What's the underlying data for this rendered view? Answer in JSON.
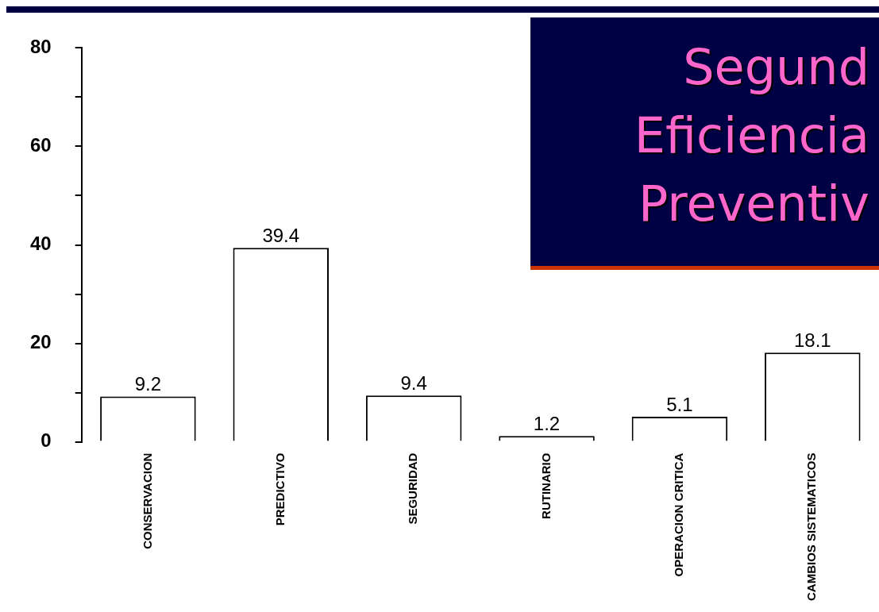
{
  "chart_data": {
    "type": "bar",
    "title": "Segund\nEficiencia\nPreventiv",
    "categories": [
      "CONSERVACION",
      "PREDICTIVO",
      "SEGURIDAD",
      "RUTINARIO",
      "OPERACION CRITICA",
      "CAMBIOS SISTEMATICOS"
    ],
    "values": [
      9.2,
      39.4,
      9.4,
      1.2,
      5.1,
      18.1
    ],
    "color": "#ffffff",
    "ylim": [
      0,
      80
    ],
    "yticks": [
      0,
      {
        "value": 10,
        "label": null
      },
      20,
      {
        "value": 30,
        "label": null
      },
      40,
      {
        "value": 50,
        "label": null
      },
      60,
      {
        "value": 70,
        "label": null
      },
      80
    ],
    "data_labels": true,
    "grid": false,
    "legend": false
  }
}
